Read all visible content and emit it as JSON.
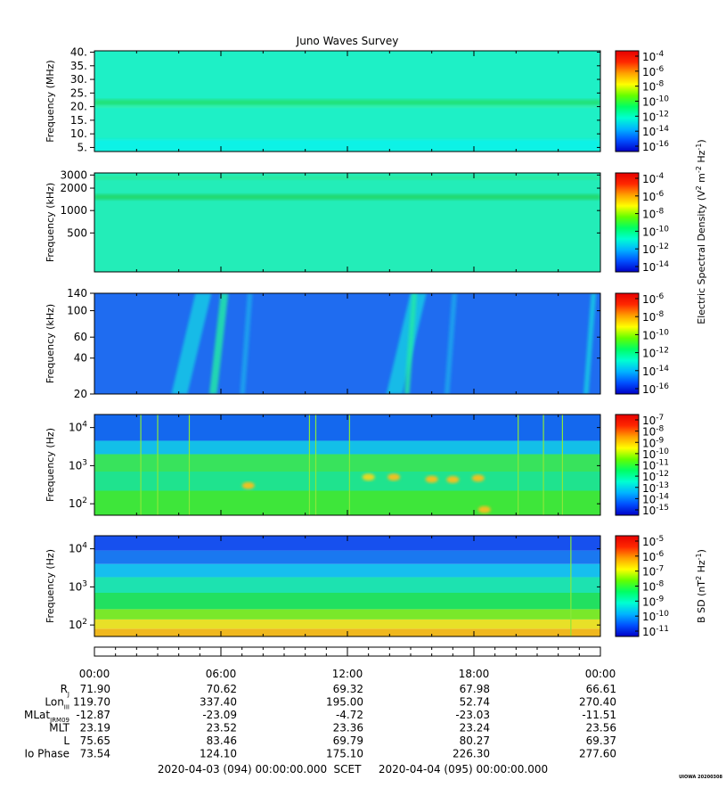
{
  "title": "Juno Waves Survey",
  "chart_data": [
    {
      "type": "heatmap",
      "ylabel": "Frequency (MHz)",
      "yscale": "linear",
      "ylim": [
        3.5,
        40.5
      ],
      "yticks": [
        {
          "v": 5,
          "label": "5."
        },
        {
          "v": 10,
          "label": "10."
        },
        {
          "v": 15,
          "label": "15."
        },
        {
          "v": 20,
          "label": "20."
        },
        {
          "v": 25,
          "label": "25."
        },
        {
          "v": 30,
          "label": "30."
        },
        {
          "v": 35,
          "label": "35."
        },
        {
          "v": 40,
          "label": "40."
        }
      ],
      "colorbar": {
        "ticks": [
          "10^-4",
          "10^-6",
          "10^-8",
          "10^-10",
          "10^-12",
          "10^-14",
          "10^-16"
        ],
        "label": ""
      },
      "background": "#1ef0c6",
      "bands": [
        {
          "y0": 20.4,
          "y1": 22.6,
          "color": "#22e27a"
        },
        {
          "y0": 19.6,
          "y1": 20.4,
          "color": "#3af0a6"
        },
        {
          "y0": 3.5,
          "y1": 8.0,
          "color": "#10f2e6"
        }
      ]
    },
    {
      "type": "heatmap",
      "ylabel": "Frequency (kHz)",
      "yscale": "log",
      "ylim": [
        150,
        3200
      ],
      "yticks": [
        {
          "v": 500,
          "label": "500"
        },
        {
          "v": 1000,
          "label": "1000"
        },
        {
          "v": 2000,
          "label": "2000"
        },
        {
          "v": 3000,
          "label": "3000"
        }
      ],
      "colorbar": {
        "ticks": [
          "10^-4",
          "10^-6",
          "10^-8",
          "10^-10",
          "10^-12",
          "10^-14"
        ],
        "label": ""
      },
      "background": "#23edb8",
      "bands": [
        {
          "y0": 1400,
          "y1": 1650,
          "color": "#22d86e"
        },
        {
          "y0": 2600,
          "y1": 2900,
          "color": "#2ae89a"
        }
      ]
    },
    {
      "type": "heatmap",
      "ylabel": "Frequency (kHz)",
      "yscale": "log",
      "ylim": [
        20,
        140
      ],
      "yticks": [
        {
          "v": 20,
          "label": "20"
        },
        {
          "v": 40,
          "label": "40"
        },
        {
          "v": 60,
          "label": "60"
        },
        {
          "v": 100,
          "label": "100"
        },
        {
          "v": 140,
          "label": "140"
        }
      ],
      "colorbar": {
        "ticks": [
          "10^-6",
          "10^-8",
          "10^-10",
          "10^-12",
          "10^-14",
          "10^-16"
        ],
        "label": "Electric Spectral Density (V^2 m^-2 Hz^-1)"
      },
      "background": "#1f6cf0",
      "bursts": [
        {
          "t": 4.6,
          "w": 1.9,
          "color": "#17c9e6"
        },
        {
          "t": 5.9,
          "w": 0.9,
          "color": "#22e8a8"
        },
        {
          "t": 7.2,
          "w": 0.6,
          "color": "#1aa6ee"
        },
        {
          "t": 14.8,
          "w": 1.9,
          "color": "#17c9e6"
        },
        {
          "t": 15.0,
          "w": 0.6,
          "color": "#22e8a8"
        },
        {
          "t": 16.9,
          "w": 0.6,
          "color": "#1aa6ee"
        },
        {
          "t": 23.5,
          "w": 0.6,
          "color": "#17c9e6"
        }
      ]
    },
    {
      "type": "heatmap",
      "ylabel": "Frequency (Hz)",
      "yscale": "log",
      "ylim": [
        50,
        22000
      ],
      "yticks": [
        {
          "v": 100,
          "label": "10^2"
        },
        {
          "v": 1000,
          "label": "10^3"
        },
        {
          "v": 10000,
          "label": "10^4"
        }
      ],
      "colorbar": {
        "ticks": [
          "10^-7",
          "10^-8",
          "10^-9",
          "10^-10",
          "10^-11",
          "10^-12",
          "10^-13",
          "10^-14",
          "10^-15"
        ],
        "label": ""
      },
      "layers": [
        {
          "y0": 50,
          "y1": 220,
          "color": "#3ee63a"
        },
        {
          "y0": 220,
          "y1": 700,
          "color": "#1fe38e"
        },
        {
          "y0": 700,
          "y1": 2000,
          "color": "#38e35c"
        },
        {
          "y0": 2000,
          "y1": 4500,
          "color": "#13bfe8"
        },
        {
          "y0": 4500,
          "y1": 22000,
          "color": "#1468ee"
        }
      ],
      "blobs": [
        {
          "t": 7.3,
          "f": 300,
          "color": "#f0c020"
        },
        {
          "t": 13.0,
          "f": 500,
          "color": "#e8d820"
        },
        {
          "t": 14.2,
          "f": 500,
          "color": "#f0c020"
        },
        {
          "t": 16.0,
          "f": 440,
          "color": "#f0c020"
        },
        {
          "t": 17.0,
          "f": 430,
          "color": "#f0c020"
        },
        {
          "t": 18.2,
          "f": 470,
          "color": "#f0c020"
        },
        {
          "t": 18.5,
          "f": 70,
          "color": "#f0c020"
        }
      ],
      "spikes": [
        2.2,
        3.0,
        4.5,
        10.2,
        10.5,
        12.1,
        20.1,
        21.3,
        22.2
      ]
    },
    {
      "type": "heatmap",
      "ylabel": "Frequency (Hz)",
      "yscale": "log",
      "ylim": [
        50,
        22000
      ],
      "yticks": [
        {
          "v": 100,
          "label": "10^2"
        },
        {
          "v": 1000,
          "label": "10^3"
        },
        {
          "v": 10000,
          "label": "10^4"
        }
      ],
      "colorbar": {
        "ticks": [
          "10^-5",
          "10^-6",
          "10^-7",
          "10^-8",
          "10^-9",
          "10^-10",
          "10^-11"
        ],
        "label": "B SD (nT^2 Hz^-1)"
      },
      "layers": [
        {
          "y0": 50,
          "y1": 80,
          "color": "#f0b81e"
        },
        {
          "y0": 80,
          "y1": 140,
          "color": "#e8e028"
        },
        {
          "y0": 140,
          "y1": 260,
          "color": "#7ae82a"
        },
        {
          "y0": 260,
          "y1": 700,
          "color": "#22e060"
        },
        {
          "y0": 700,
          "y1": 1800,
          "color": "#1de2b0"
        },
        {
          "y0": 1800,
          "y1": 4000,
          "color": "#16bfee"
        },
        {
          "y0": 4000,
          "y1": 9000,
          "color": "#1a78f0"
        },
        {
          "y0": 9000,
          "y1": 22000,
          "color": "#1750ee"
        }
      ],
      "spikes": [
        22.6
      ]
    }
  ],
  "ephemeris": {
    "times": [
      "00:00",
      "06:00",
      "12:00",
      "18:00",
      "00:00"
    ],
    "rows": [
      {
        "label": "R",
        "sub": "J",
        "values": [
          "71.90",
          "70.62",
          "69.32",
          "67.98",
          "66.61"
        ]
      },
      {
        "label": "Lon",
        "sub": "III",
        "values": [
          "119.70",
          "337.40",
          "195.00",
          "52.74",
          "270.40"
        ]
      },
      {
        "label": "MLat",
        "sub": "JRM09",
        "values": [
          "-12.87",
          "-23.09",
          "-4.72",
          "-23.03",
          "-11.51"
        ]
      },
      {
        "label": "MLT",
        "sub": "",
        "values": [
          "23.19",
          "23.52",
          "23.36",
          "23.24",
          "23.56"
        ]
      },
      {
        "label": "L",
        "sub": "",
        "values": [
          "75.65",
          "83.46",
          "69.79",
          "80.27",
          "69.37"
        ]
      },
      {
        "label": "Io Phase",
        "sub": "",
        "values": [
          "73.54",
          "124.10",
          "175.10",
          "226.30",
          "277.60"
        ]
      }
    ]
  },
  "footer": {
    "start": "2020-04-03 (094) 00:00:00.000",
    "scet": "SCET",
    "end": "2020-04-04 (095) 00:00:00.000",
    "stamp": "UIOWA 20200308"
  },
  "colormap": [
    "#0000c8",
    "#0050ff",
    "#00b4ff",
    "#00ffd2",
    "#00ff64",
    "#64ff00",
    "#ffff00",
    "#ffa000",
    "#ff2800",
    "#e60000"
  ]
}
